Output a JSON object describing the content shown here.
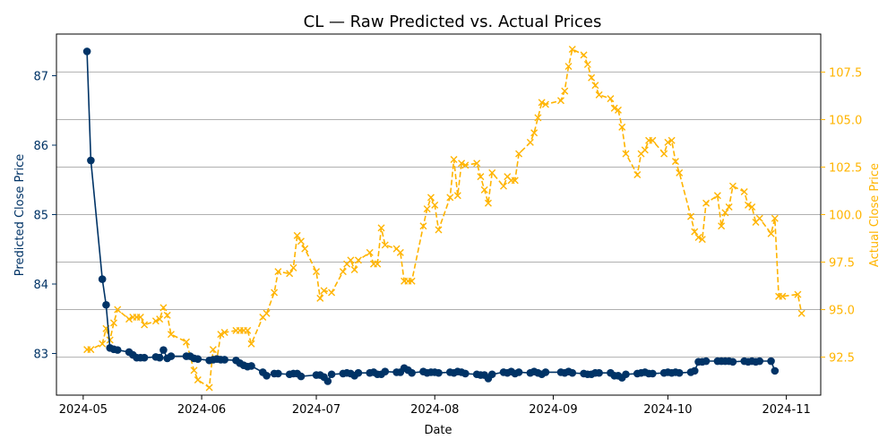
{
  "chart_data": {
    "type": "line",
    "title": "CL — Raw Predicted vs. Actual Prices",
    "xlabel": "Date",
    "x_ticks": [
      "2024-05",
      "2024-06",
      "2024-07",
      "2024-08",
      "2024-09",
      "2024-10",
      "2024-11"
    ],
    "xlim": [
      "2024-04-24",
      "2024-11-10"
    ],
    "y_left": {
      "label": "Predicted Close Price",
      "ticks": [
        "83",
        "84",
        "85",
        "86",
        "87"
      ],
      "ylim": [
        82.4,
        87.6
      ],
      "color": "#003366"
    },
    "y_right": {
      "label": "Actual Close Price",
      "ticks": [
        "92.5",
        "95.0",
        "97.5",
        "100.0",
        "102.5",
        "105.0",
        "107.5"
      ],
      "ylim": [
        90.5,
        109.5
      ],
      "color": "#FFB400"
    },
    "grid": "horizontal lines at right-axis ticks",
    "series": [
      {
        "axis": "left",
        "style": "solid line, circle markers",
        "color": "#003366",
        "points": [
          [
            "2024-05-02",
            87.35
          ],
          [
            "2024-05-03",
            85.78
          ],
          [
            "2024-05-06",
            84.07
          ],
          [
            "2024-05-07",
            83.7
          ],
          [
            "2024-05-08",
            83.08
          ],
          [
            "2024-05-09",
            83.06
          ],
          [
            "2024-05-10",
            83.05
          ],
          [
            "2024-05-13",
            83.02
          ],
          [
            "2024-05-14",
            82.98
          ],
          [
            "2024-05-15",
            82.94
          ],
          [
            "2024-05-16",
            82.94
          ],
          [
            "2024-05-17",
            82.94
          ],
          [
            "2024-05-20",
            82.95
          ],
          [
            "2024-05-21",
            82.94
          ],
          [
            "2024-05-22",
            83.05
          ],
          [
            "2024-05-23",
            82.93
          ],
          [
            "2024-05-24",
            82.96
          ],
          [
            "2024-05-28",
            82.96
          ],
          [
            "2024-05-29",
            82.96
          ],
          [
            "2024-05-30",
            82.93
          ],
          [
            "2024-05-31",
            82.92
          ],
          [
            "2024-06-03",
            82.9
          ],
          [
            "2024-06-04",
            82.91
          ],
          [
            "2024-06-05",
            82.92
          ],
          [
            "2024-06-06",
            82.91
          ],
          [
            "2024-06-07",
            82.91
          ],
          [
            "2024-06-10",
            82.9
          ],
          [
            "2024-06-11",
            82.86
          ],
          [
            "2024-06-12",
            82.83
          ],
          [
            "2024-06-13",
            82.81
          ],
          [
            "2024-06-14",
            82.82
          ],
          [
            "2024-06-17",
            82.73
          ],
          [
            "2024-06-18",
            82.68
          ],
          [
            "2024-06-20",
            82.71
          ],
          [
            "2024-06-21",
            82.71
          ],
          [
            "2024-06-24",
            82.7
          ],
          [
            "2024-06-25",
            82.71
          ],
          [
            "2024-06-26",
            82.71
          ],
          [
            "2024-06-27",
            82.67
          ],
          [
            "2024-07-01",
            82.69
          ],
          [
            "2024-07-02",
            82.69
          ],
          [
            "2024-07-03",
            82.66
          ],
          [
            "2024-07-04",
            82.6
          ],
          [
            "2024-07-05",
            82.7
          ],
          [
            "2024-07-08",
            82.71
          ],
          [
            "2024-07-09",
            82.72
          ],
          [
            "2024-07-10",
            82.71
          ],
          [
            "2024-07-11",
            82.68
          ],
          [
            "2024-07-12",
            82.72
          ],
          [
            "2024-07-15",
            82.72
          ],
          [
            "2024-07-16",
            82.73
          ],
          [
            "2024-07-17",
            82.7
          ],
          [
            "2024-07-18",
            82.7
          ],
          [
            "2024-07-19",
            82.74
          ],
          [
            "2024-07-22",
            82.73
          ],
          [
            "2024-07-23",
            82.73
          ],
          [
            "2024-07-24",
            82.79
          ],
          [
            "2024-07-25",
            82.76
          ],
          [
            "2024-07-26",
            82.72
          ],
          [
            "2024-07-29",
            82.74
          ],
          [
            "2024-07-30",
            82.72
          ],
          [
            "2024-07-31",
            82.73
          ],
          [
            "2024-08-01",
            82.73
          ],
          [
            "2024-08-02",
            82.72
          ],
          [
            "2024-08-05",
            82.73
          ],
          [
            "2024-08-06",
            82.72
          ],
          [
            "2024-08-07",
            82.74
          ],
          [
            "2024-08-08",
            82.73
          ],
          [
            "2024-08-09",
            82.71
          ],
          [
            "2024-08-12",
            82.7
          ],
          [
            "2024-08-13",
            82.69
          ],
          [
            "2024-08-14",
            82.69
          ],
          [
            "2024-08-15",
            82.64
          ],
          [
            "2024-08-16",
            82.7
          ],
          [
            "2024-08-19",
            82.73
          ],
          [
            "2024-08-20",
            82.72
          ],
          [
            "2024-08-21",
            82.74
          ],
          [
            "2024-08-22",
            82.71
          ],
          [
            "2024-08-23",
            82.73
          ],
          [
            "2024-08-26",
            82.72
          ],
          [
            "2024-08-27",
            82.74
          ],
          [
            "2024-08-28",
            82.72
          ],
          [
            "2024-08-29",
            82.7
          ],
          [
            "2024-08-30",
            82.73
          ],
          [
            "2024-09-03",
            82.73
          ],
          [
            "2024-09-04",
            82.72
          ],
          [
            "2024-09-05",
            82.74
          ],
          [
            "2024-09-06",
            82.72
          ],
          [
            "2024-09-09",
            82.71
          ],
          [
            "2024-09-10",
            82.7
          ],
          [
            "2024-09-11",
            82.7
          ],
          [
            "2024-09-12",
            82.72
          ],
          [
            "2024-09-13",
            82.72
          ],
          [
            "2024-09-16",
            82.72
          ],
          [
            "2024-09-17",
            82.68
          ],
          [
            "2024-09-18",
            82.68
          ],
          [
            "2024-09-19",
            82.65
          ],
          [
            "2024-09-20",
            82.7
          ],
          [
            "2024-09-23",
            82.71
          ],
          [
            "2024-09-24",
            82.72
          ],
          [
            "2024-09-25",
            82.73
          ],
          [
            "2024-09-26",
            82.71
          ],
          [
            "2024-09-27",
            82.71
          ],
          [
            "2024-09-30",
            82.72
          ],
          [
            "2024-10-01",
            82.73
          ],
          [
            "2024-10-02",
            82.72
          ],
          [
            "2024-10-03",
            82.73
          ],
          [
            "2024-10-04",
            82.72
          ],
          [
            "2024-10-07",
            82.73
          ],
          [
            "2024-10-08",
            82.75
          ],
          [
            "2024-10-09",
            82.88
          ],
          [
            "2024-10-10",
            82.88
          ],
          [
            "2024-10-11",
            82.89
          ],
          [
            "2024-10-14",
            82.89
          ],
          [
            "2024-10-15",
            82.89
          ],
          [
            "2024-10-16",
            82.89
          ],
          [
            "2024-10-17",
            82.89
          ],
          [
            "2024-10-18",
            82.88
          ],
          [
            "2024-10-21",
            82.89
          ],
          [
            "2024-10-22",
            82.88
          ],
          [
            "2024-10-23",
            82.89
          ],
          [
            "2024-10-24",
            82.88
          ],
          [
            "2024-10-25",
            82.89
          ],
          [
            "2024-10-28",
            82.89
          ],
          [
            "2024-10-29",
            82.75
          ]
        ]
      },
      {
        "axis": "right",
        "style": "dashed line, x markers",
        "color": "#FFB400",
        "points": [
          [
            "2024-05-02",
            92.9
          ],
          [
            "2024-05-03",
            92.9
          ],
          [
            "2024-05-06",
            93.2
          ],
          [
            "2024-05-07",
            94.0
          ],
          [
            "2024-05-08",
            93.4
          ],
          [
            "2024-05-09",
            94.3
          ],
          [
            "2024-05-10",
            95.0
          ],
          [
            "2024-05-13",
            94.5
          ],
          [
            "2024-05-14",
            94.6
          ],
          [
            "2024-05-15",
            94.6
          ],
          [
            "2024-05-16",
            94.6
          ],
          [
            "2024-05-17",
            94.2
          ],
          [
            "2024-05-20",
            94.4
          ],
          [
            "2024-05-21",
            94.5
          ],
          [
            "2024-05-22",
            95.1
          ],
          [
            "2024-05-23",
            94.7
          ],
          [
            "2024-05-24",
            93.7
          ],
          [
            "2024-05-28",
            93.3
          ],
          [
            "2024-05-30",
            91.8
          ],
          [
            "2024-05-31",
            91.3
          ],
          [
            "2024-06-03",
            90.9
          ],
          [
            "2024-06-04",
            92.9
          ],
          [
            "2024-06-05",
            92.4
          ],
          [
            "2024-06-06",
            93.7
          ],
          [
            "2024-06-07",
            93.8
          ],
          [
            "2024-06-10",
            93.9
          ],
          [
            "2024-06-11",
            93.9
          ],
          [
            "2024-06-12",
            93.9
          ],
          [
            "2024-06-13",
            93.9
          ],
          [
            "2024-06-14",
            93.2
          ],
          [
            "2024-06-17",
            94.6
          ],
          [
            "2024-06-18",
            94.8
          ],
          [
            "2024-06-20",
            95.9
          ],
          [
            "2024-06-21",
            97.0
          ],
          [
            "2024-06-24",
            96.9
          ],
          [
            "2024-06-25",
            97.2
          ],
          [
            "2024-06-26",
            98.9
          ],
          [
            "2024-06-27",
            98.6
          ],
          [
            "2024-06-28",
            98.2
          ],
          [
            "2024-07-01",
            97.0
          ],
          [
            "2024-07-02",
            95.6
          ],
          [
            "2024-07-03",
            96.0
          ],
          [
            "2024-07-05",
            95.9
          ],
          [
            "2024-07-08",
            97.0
          ],
          [
            "2024-07-09",
            97.4
          ],
          [
            "2024-07-10",
            97.6
          ],
          [
            "2024-07-11",
            97.1
          ],
          [
            "2024-07-12",
            97.6
          ],
          [
            "2024-07-15",
            98.0
          ],
          [
            "2024-07-16",
            97.4
          ],
          [
            "2024-07-17",
            97.4
          ],
          [
            "2024-07-18",
            99.3
          ],
          [
            "2024-07-19",
            98.4
          ],
          [
            "2024-07-22",
            98.2
          ],
          [
            "2024-07-23",
            98.0
          ],
          [
            "2024-07-24",
            96.5
          ],
          [
            "2024-07-25",
            96.5
          ],
          [
            "2024-07-26",
            96.5
          ],
          [
            "2024-07-29",
            99.4
          ],
          [
            "2024-07-30",
            100.3
          ],
          [
            "2024-07-31",
            100.9
          ],
          [
            "2024-08-01",
            100.5
          ],
          [
            "2024-08-02",
            99.2
          ],
          [
            "2024-08-05",
            100.9
          ],
          [
            "2024-08-06",
            102.9
          ],
          [
            "2024-08-07",
            101.0
          ],
          [
            "2024-08-08",
            102.7
          ],
          [
            "2024-08-09",
            102.6
          ],
          [
            "2024-08-12",
            102.7
          ],
          [
            "2024-08-13",
            102.0
          ],
          [
            "2024-08-14",
            101.3
          ],
          [
            "2024-08-15",
            100.6
          ],
          [
            "2024-08-16",
            102.2
          ],
          [
            "2024-08-19",
            101.5
          ],
          [
            "2024-08-20",
            102.0
          ],
          [
            "2024-08-21",
            101.8
          ],
          [
            "2024-08-22",
            101.8
          ],
          [
            "2024-08-23",
            103.2
          ],
          [
            "2024-08-26",
            103.8
          ],
          [
            "2024-08-27",
            104.3
          ],
          [
            "2024-08-28",
            105.1
          ],
          [
            "2024-08-29",
            105.9
          ],
          [
            "2024-08-30",
            105.8
          ],
          [
            "2024-09-03",
            106.0
          ],
          [
            "2024-09-04",
            106.5
          ],
          [
            "2024-09-05",
            107.8
          ],
          [
            "2024-09-06",
            108.7
          ],
          [
            "2024-09-09",
            108.4
          ],
          [
            "2024-09-10",
            107.9
          ],
          [
            "2024-09-11",
            107.2
          ],
          [
            "2024-09-12",
            106.8
          ],
          [
            "2024-09-13",
            106.3
          ],
          [
            "2024-09-16",
            106.1
          ],
          [
            "2024-09-17",
            105.6
          ],
          [
            "2024-09-18",
            105.5
          ],
          [
            "2024-09-19",
            104.6
          ],
          [
            "2024-09-20",
            103.2
          ],
          [
            "2024-09-23",
            102.1
          ],
          [
            "2024-09-24",
            103.2
          ],
          [
            "2024-09-25",
            103.4
          ],
          [
            "2024-09-26",
            103.9
          ],
          [
            "2024-09-27",
            103.9
          ],
          [
            "2024-09-30",
            103.2
          ],
          [
            "2024-10-01",
            103.8
          ],
          [
            "2024-10-02",
            103.9
          ],
          [
            "2024-10-03",
            102.8
          ],
          [
            "2024-10-04",
            102.2
          ],
          [
            "2024-10-07",
            99.9
          ],
          [
            "2024-10-08",
            99.1
          ],
          [
            "2024-10-09",
            98.8
          ],
          [
            "2024-10-10",
            98.7
          ],
          [
            "2024-10-11",
            100.6
          ],
          [
            "2024-10-14",
            101.0
          ],
          [
            "2024-10-15",
            99.4
          ],
          [
            "2024-10-16",
            100.1
          ],
          [
            "2024-10-17",
            100.4
          ],
          [
            "2024-10-18",
            101.5
          ],
          [
            "2024-10-21",
            101.2
          ],
          [
            "2024-10-22",
            100.5
          ],
          [
            "2024-10-23",
            100.4
          ],
          [
            "2024-10-24",
            99.6
          ],
          [
            "2024-10-25",
            99.8
          ],
          [
            "2024-10-28",
            99.0
          ],
          [
            "2024-10-29",
            99.8
          ],
          [
            "2024-10-30",
            95.7
          ],
          [
            "2024-10-31",
            95.7
          ],
          [
            "2024-11-04",
            95.8
          ],
          [
            "2024-11-05",
            94.8
          ]
        ]
      }
    ]
  }
}
